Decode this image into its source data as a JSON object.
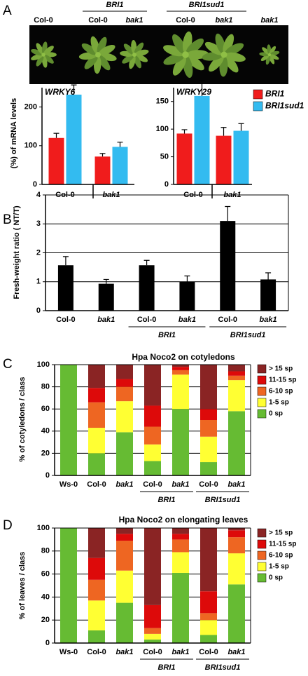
{
  "panel_labels": [
    "A",
    "B",
    "C",
    "D"
  ],
  "photo": {
    "labels": [
      "Col-0",
      "Col-0",
      "bak1",
      "Col-0",
      "bak1",
      "bak1"
    ],
    "group_labels": [
      "BRI1",
      "BRI1sud1"
    ]
  },
  "chart_data": [
    {
      "type": "bar",
      "title": "WRKY6",
      "y_label": "(%) of mRNA levels",
      "categories": [
        "Col-0",
        "bak1"
      ],
      "series": [
        {
          "name": "BRI1",
          "color": "#f01c1c",
          "values": [
            120,
            72
          ],
          "errors": [
            12,
            8
          ]
        },
        {
          "name": "BRI1sud1",
          "color": "#33bbf0",
          "values": [
            232,
            97
          ],
          "errors": [
            25,
            12
          ]
        }
      ],
      "ylim": [
        0,
        250
      ],
      "yticks": [
        0,
        100,
        200
      ]
    },
    {
      "type": "bar",
      "title": "WRKY29",
      "categories": [
        "Col-0",
        "bak1"
      ],
      "series": [
        {
          "name": "BRI1",
          "color": "#f01c1c",
          "values": [
            92,
            88
          ],
          "errors": [
            7,
            15
          ]
        },
        {
          "name": "BRI1sud1",
          "color": "#33bbf0",
          "values": [
            160,
            97
          ],
          "errors": [
            28,
            13
          ]
        }
      ],
      "ylim": [
        0,
        175
      ],
      "yticks": [
        0,
        50,
        100,
        150
      ],
      "legend": "right"
    },
    {
      "type": "bar",
      "y_label": "Fresh-weight ratio ( NT/T)",
      "categories": [
        "Col-0",
        "bak1",
        "Col-0",
        "bak1",
        "Col-0",
        "bak1"
      ],
      "values": [
        1.57,
        0.93,
        1.57,
        1.0,
        3.1,
        1.08
      ],
      "errors": [
        0.3,
        0.15,
        0.17,
        0.2,
        0.5,
        0.23
      ],
      "color": "#000000",
      "ylim": [
        0,
        4
      ],
      "yticks": [
        0,
        1,
        2,
        3,
        4
      ],
      "grid": true,
      "group_labels": [
        "BRI1",
        "BRI1sud1"
      ]
    },
    {
      "type": "stacked_bar",
      "title": "Hpa Noco2  on cotyledons",
      "y_label": "% of cotyledons / class",
      "categories": [
        "Ws-0",
        "Col-0",
        "bak1",
        "Col-0",
        "bak1",
        "Col-0",
        "bak1"
      ],
      "series": [
        {
          "name": "0 sp",
          "color": "#66bb33",
          "values": [
            100,
            20,
            39,
            13,
            60,
            12,
            58
          ]
        },
        {
          "name": "1-5 sp",
          "color": "#ffff33",
          "values": [
            0,
            23,
            28,
            15,
            31,
            23,
            28
          ]
        },
        {
          "name": "6-10 sp",
          "color": "#ee6622",
          "values": [
            0,
            23,
            13,
            16,
            4,
            15,
            4
          ]
        },
        {
          "name": "11-15 sp",
          "color": "#dd0a0a",
          "values": [
            0,
            13,
            7,
            19,
            3,
            10,
            4
          ]
        },
        {
          "name": "> 15 sp",
          "color": "#8a2424",
          "values": [
            0,
            21,
            13,
            37,
            2,
            40,
            6
          ]
        }
      ],
      "ylim": [
        0,
        100
      ],
      "yticks": [
        0,
        20,
        40,
        60,
        80,
        100
      ],
      "grid": true,
      "legend": "right",
      "group_labels": [
        "BRI1",
        "BRI1sud1"
      ]
    },
    {
      "type": "stacked_bar",
      "title": "Hpa Noco2 on elongating leaves",
      "y_label": "% of leaves / class",
      "categories": [
        "Ws-0",
        "Col-0",
        "bak1",
        "Col-0",
        "bak1",
        "Col-0",
        "bak1"
      ],
      "series": [
        {
          "name": "0 sp",
          "color": "#66bb33",
          "values": [
            100,
            11,
            35,
            3,
            61,
            7,
            51
          ]
        },
        {
          "name": "1-5 sp",
          "color": "#ffff33",
          "values": [
            0,
            26,
            28,
            5,
            18,
            13,
            27
          ]
        },
        {
          "name": "6-10 sp",
          "color": "#ee6622",
          "values": [
            0,
            18,
            26,
            5,
            11,
            6,
            14
          ]
        },
        {
          "name": "11-15 sp",
          "color": "#dd0a0a",
          "values": [
            0,
            19,
            6,
            20,
            5,
            19,
            6
          ]
        },
        {
          "name": "> 15 sp",
          "color": "#8a2424",
          "values": [
            0,
            26,
            5,
            67,
            5,
            55,
            2
          ]
        }
      ],
      "ylim": [
        0,
        100
      ],
      "yticks": [
        0,
        20,
        40,
        60,
        80,
        100
      ],
      "grid": true,
      "legend": "right",
      "group_labels": [
        "BRI1",
        "BRI1sud1"
      ]
    }
  ]
}
